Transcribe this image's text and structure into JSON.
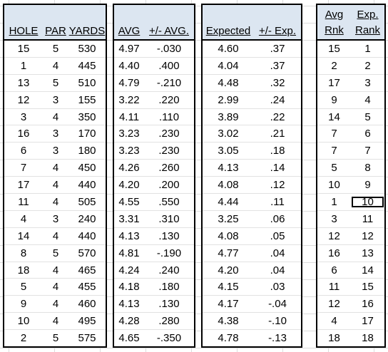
{
  "headers": {
    "hole": "HOLE",
    "par": "PAR",
    "yards": "YARDS",
    "avg": "AVG",
    "plus_minus_avg": "+/- AVG.",
    "expected": "Expected",
    "plus_minus_exp": "+/- Exp.",
    "avg_rank_line1": "Avg",
    "avg_rank_line2": "Rnk",
    "exp_rank_line1": "Exp.",
    "exp_rank_line2": "Rank"
  },
  "rows": [
    {
      "hole": "15",
      "par": "5",
      "yards": "530",
      "avg": "4.97",
      "pm_avg": "-.030",
      "expected": "4.60",
      "pm_exp": ".37",
      "avg_rank": "15",
      "exp_rank": "1"
    },
    {
      "hole": "1",
      "par": "4",
      "yards": "445",
      "avg": "4.40",
      "pm_avg": ".400",
      "expected": "4.04",
      "pm_exp": ".37",
      "avg_rank": "2",
      "exp_rank": "2"
    },
    {
      "hole": "13",
      "par": "5",
      "yards": "510",
      "avg": "4.79",
      "pm_avg": "-.210",
      "expected": "4.48",
      "pm_exp": ".32",
      "avg_rank": "17",
      "exp_rank": "3"
    },
    {
      "hole": "12",
      "par": "3",
      "yards": "155",
      "avg": "3.22",
      "pm_avg": ".220",
      "expected": "2.99",
      "pm_exp": ".24",
      "avg_rank": "9",
      "exp_rank": "4"
    },
    {
      "hole": "3",
      "par": "4",
      "yards": "350",
      "avg": "4.11",
      "pm_avg": ".110",
      "expected": "3.89",
      "pm_exp": ".22",
      "avg_rank": "14",
      "exp_rank": "5"
    },
    {
      "hole": "16",
      "par": "3",
      "yards": "170",
      "avg": "3.23",
      "pm_avg": ".230",
      "expected": "3.02",
      "pm_exp": ".21",
      "avg_rank": "7",
      "exp_rank": "6"
    },
    {
      "hole": "6",
      "par": "3",
      "yards": "180",
      "avg": "3.23",
      "pm_avg": ".230",
      "expected": "3.05",
      "pm_exp": ".18",
      "avg_rank": "7",
      "exp_rank": "7"
    },
    {
      "hole": "7",
      "par": "4",
      "yards": "450",
      "avg": "4.26",
      "pm_avg": ".260",
      "expected": "4.13",
      "pm_exp": ".14",
      "avg_rank": "5",
      "exp_rank": "8"
    },
    {
      "hole": "17",
      "par": "4",
      "yards": "440",
      "avg": "4.20",
      "pm_avg": ".200",
      "expected": "4.08",
      "pm_exp": ".12",
      "avg_rank": "10",
      "exp_rank": "9"
    },
    {
      "hole": "11",
      "par": "4",
      "yards": "505",
      "avg": "4.55",
      "pm_avg": ".550",
      "expected": "4.44",
      "pm_exp": ".11",
      "avg_rank": "1",
      "exp_rank": "10"
    },
    {
      "hole": "4",
      "par": "3",
      "yards": "240",
      "avg": "3.31",
      "pm_avg": ".310",
      "expected": "3.25",
      "pm_exp": ".06",
      "avg_rank": "3",
      "exp_rank": "11"
    },
    {
      "hole": "14",
      "par": "4",
      "yards": "440",
      "avg": "4.13",
      "pm_avg": ".130",
      "expected": "4.08",
      "pm_exp": ".05",
      "avg_rank": "12",
      "exp_rank": "12"
    },
    {
      "hole": "8",
      "par": "5",
      "yards": "570",
      "avg": "4.81",
      "pm_avg": "-.190",
      "expected": "4.77",
      "pm_exp": ".04",
      "avg_rank": "16",
      "exp_rank": "13"
    },
    {
      "hole": "18",
      "par": "4",
      "yards": "465",
      "avg": "4.24",
      "pm_avg": ".240",
      "expected": "4.20",
      "pm_exp": ".04",
      "avg_rank": "6",
      "exp_rank": "14"
    },
    {
      "hole": "5",
      "par": "4",
      "yards": "455",
      "avg": "4.18",
      "pm_avg": ".180",
      "expected": "4.15",
      "pm_exp": ".03",
      "avg_rank": "11",
      "exp_rank": "15"
    },
    {
      "hole": "9",
      "par": "4",
      "yards": "460",
      "avg": "4.13",
      "pm_avg": ".130",
      "expected": "4.17",
      "pm_exp": "-.04",
      "avg_rank": "12",
      "exp_rank": "16"
    },
    {
      "hole": "10",
      "par": "4",
      "yards": "495",
      "avg": "4.28",
      "pm_avg": ".280",
      "expected": "4.38",
      "pm_exp": "-.10",
      "avg_rank": "4",
      "exp_rank": "17"
    },
    {
      "hole": "2",
      "par": "5",
      "yards": "575",
      "avg": "4.65",
      "pm_avg": "-.350",
      "expected": "4.78",
      "pm_exp": "-.13",
      "avg_rank": "18",
      "exp_rank": "18"
    }
  ],
  "selected_cell": {
    "row": 9,
    "column": "exp_rank"
  },
  "colors": {
    "header_fill": "#dce6f1",
    "border": "#000000",
    "gridline": "#d9d9d9"
  }
}
